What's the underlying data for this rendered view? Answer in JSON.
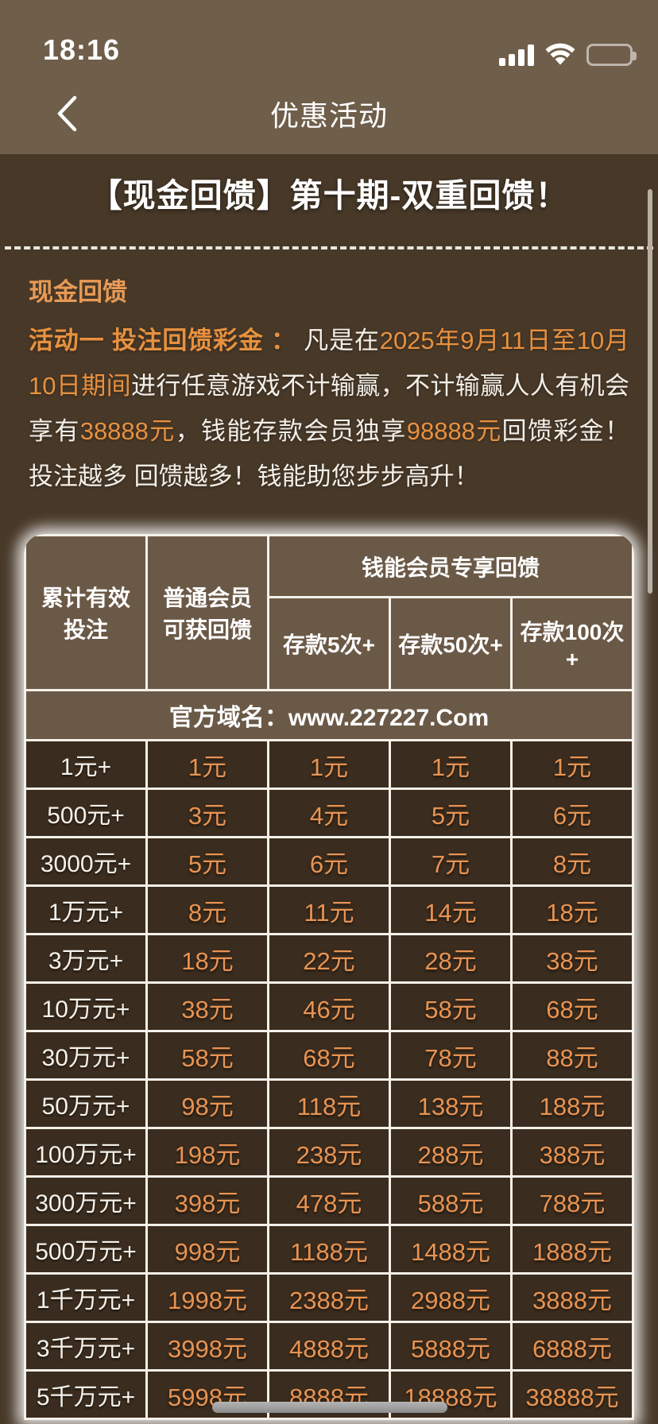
{
  "status_bar": {
    "time": "18:16",
    "icons": {
      "signal": "cellular-signal-4-bars",
      "wifi": "wifi-full",
      "battery": "battery-full"
    }
  },
  "nav": {
    "title": "优惠活动"
  },
  "promo": {
    "title": "【现金回馈】第十期-双重回馈！",
    "section_heading": "现金回馈",
    "paragraph_segments": [
      {
        "text": "活动一 投注回馈彩金 ： ",
        "style": "orange-bold"
      },
      {
        "text": "凡是在",
        "style": "white"
      },
      {
        "text": "2025年9月11日至10月10日期间",
        "style": "orange"
      },
      {
        "text": "进行任意游戏不计输赢，不计输赢人人有机会享有",
        "style": "white"
      },
      {
        "text": "38888元",
        "style": "orange"
      },
      {
        "text": "，钱能存款会员独享",
        "style": "white"
      },
      {
        "text": "98888元",
        "style": "orange"
      },
      {
        "text": "回馈彩金！投注越多 回馈越多！钱能助您步步高升！",
        "style": "white"
      }
    ]
  },
  "table": {
    "header": {
      "col1": "累计有效投注",
      "col2": "普通会员可获回馈",
      "group": "钱能会员专享回馈",
      "sub": [
        "存款5次+",
        "存款50次+",
        "存款100次+"
      ]
    },
    "domain_row": "官方域名：www.227227.Com",
    "rows": [
      [
        "1元+",
        "1元",
        "1元",
        "1元",
        "1元"
      ],
      [
        "500元+",
        "3元",
        "4元",
        "5元",
        "6元"
      ],
      [
        "3000元+",
        "5元",
        "6元",
        "7元",
        "8元"
      ],
      [
        "1万元+",
        "8元",
        "11元",
        "14元",
        "18元"
      ],
      [
        "3万元+",
        "18元",
        "22元",
        "28元",
        "38元"
      ],
      [
        "10万元+",
        "38元",
        "46元",
        "58元",
        "68元"
      ],
      [
        "30万元+",
        "58元",
        "68元",
        "78元",
        "88元"
      ],
      [
        "50万元+",
        "98元",
        "118元",
        "138元",
        "188元"
      ],
      [
        "100万元+",
        "198元",
        "238元",
        "288元",
        "388元"
      ],
      [
        "300万元+",
        "398元",
        "478元",
        "588元",
        "788元"
      ],
      [
        "500万元+",
        "998元",
        "1188元",
        "1488元",
        "1888元"
      ],
      [
        "1千万元+",
        "1998元",
        "2388元",
        "2988元",
        "3888元"
      ],
      [
        "3千万元+",
        "3998元",
        "4888元",
        "5888元",
        "6888元"
      ],
      [
        "5千万元+",
        "5998元",
        "8888元",
        "18888元",
        "38888元"
      ]
    ]
  },
  "colors": {
    "topbar_bg": "#6f5e4a",
    "content_bg": "#473828",
    "table_header_bg": "#6b5947",
    "table_cell_bg": "#3a2c1e",
    "accent_orange": "#e8913f",
    "value_orange": "#e89352",
    "border_white": "#f5f1ea"
  }
}
